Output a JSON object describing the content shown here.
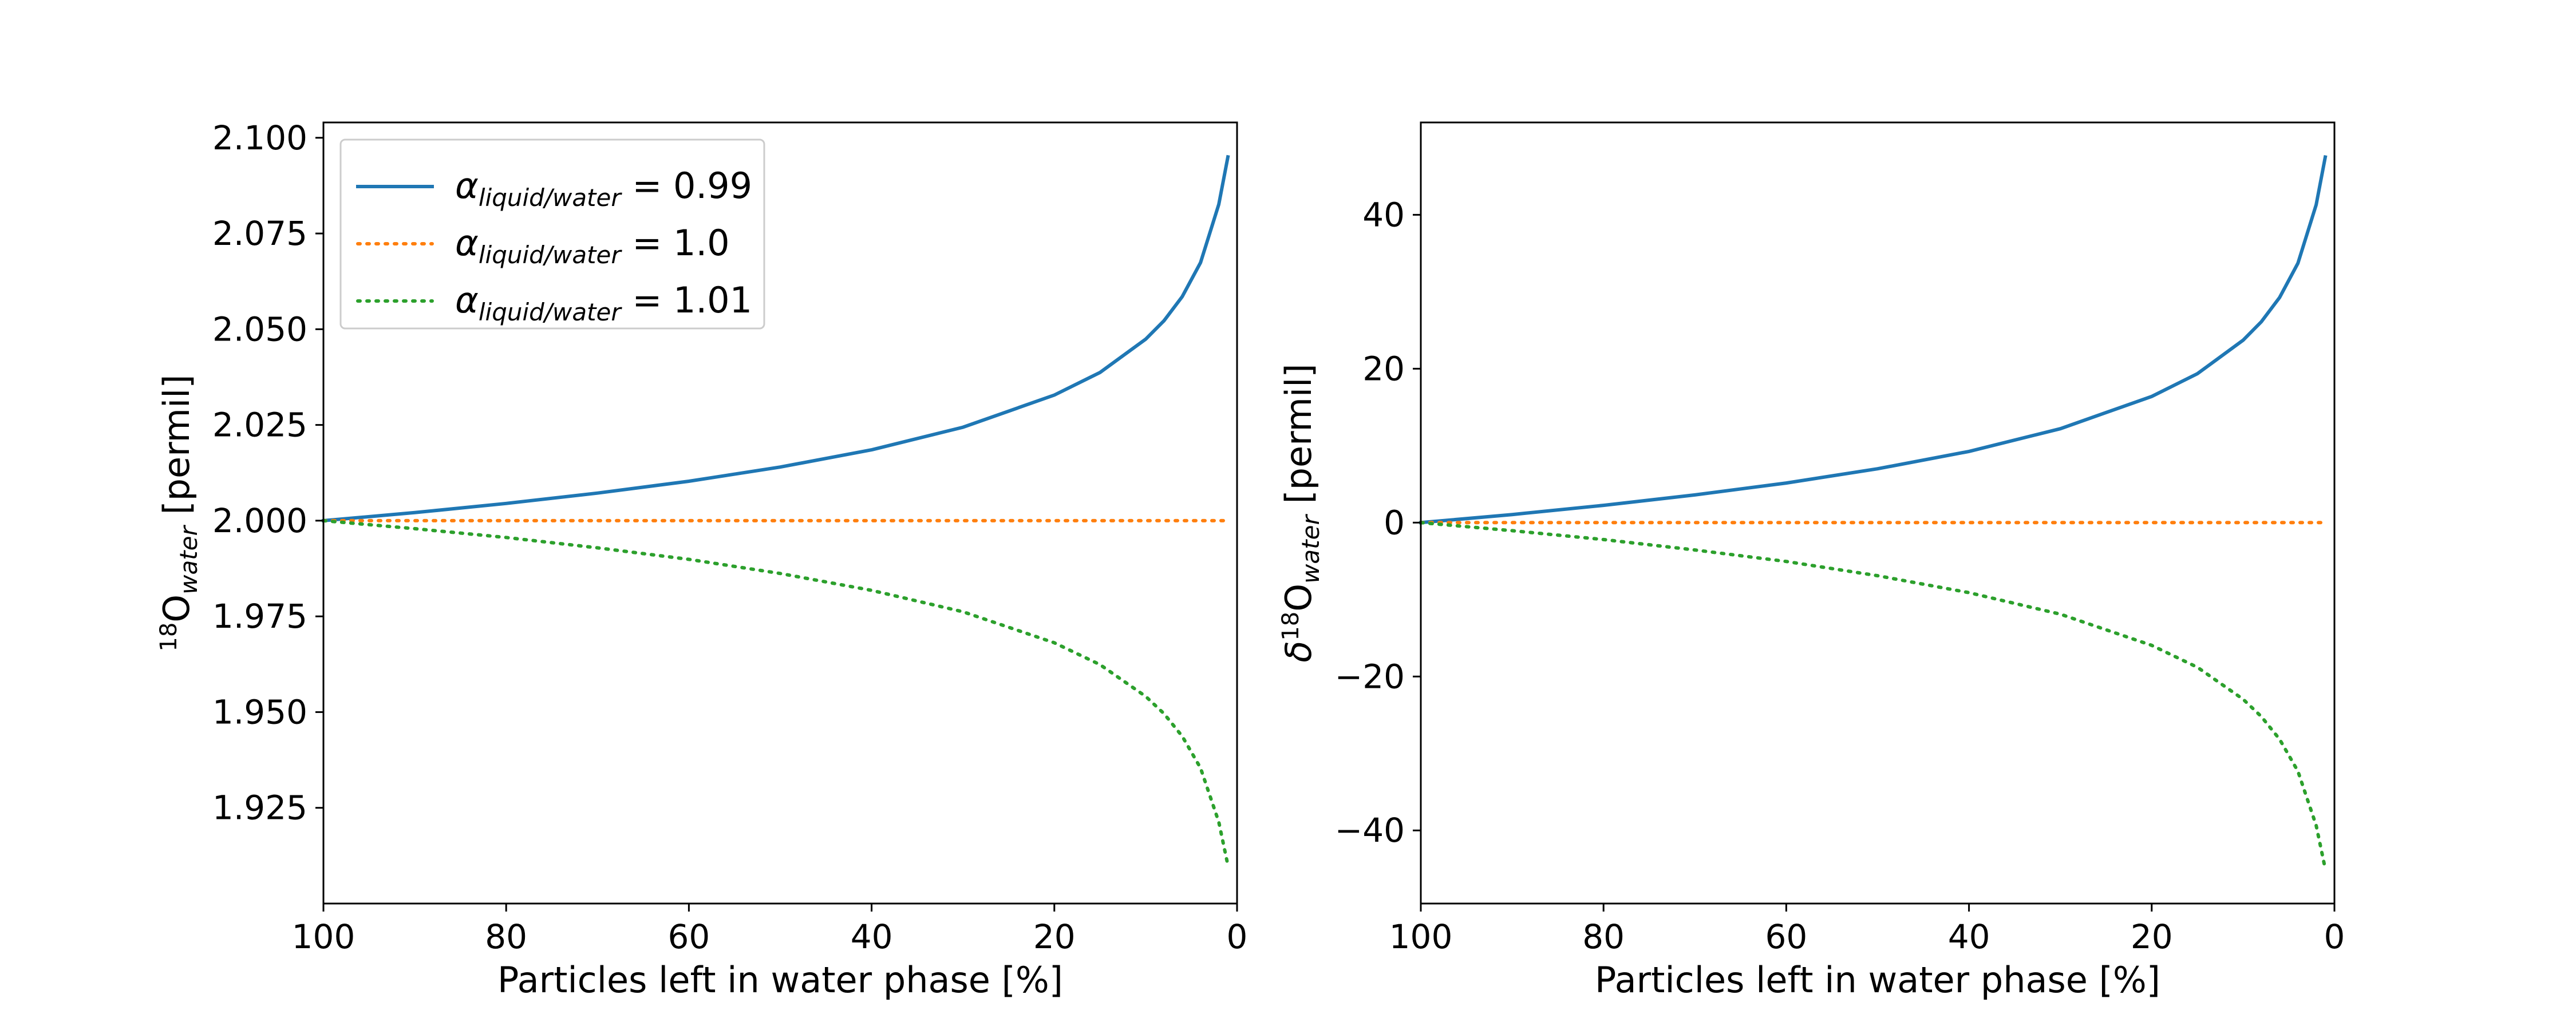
{
  "chart_data": [
    {
      "type": "line",
      "xlabel": "Particles left in water phase [%]",
      "ylabel": {
        "sup": "18",
        "main": "O",
        "sub": "water",
        "tail": " [permil]"
      },
      "xlim": [
        100,
        0
      ],
      "ylim": [
        1.9,
        2.104
      ],
      "xticks": [
        100,
        80,
        60,
        40,
        20,
        0
      ],
      "yticks": [
        2.1,
        2.075,
        2.05,
        2.025,
        2.0,
        1.975,
        1.95,
        1.925
      ],
      "ytick_labels": [
        "2.100",
        "2.075",
        "2.050",
        "2.025",
        "2.000",
        "1.975",
        "1.950",
        "1.925"
      ],
      "legend": "upper-left",
      "series": [
        {
          "name": "α_liquid/water = 0.99",
          "legend_symbol": "α",
          "legend_sub": "liquid/water",
          "legend_value": " = 0.99",
          "color": "#1f77b4",
          "style": "solid",
          "x": [
            100,
            90,
            80,
            70,
            60,
            50,
            40,
            30,
            20,
            15,
            10,
            8,
            6,
            4,
            2,
            1
          ],
          "y": [
            2.0,
            2.0021,
            2.0045,
            2.0072,
            2.0103,
            2.014,
            2.0185,
            2.0244,
            2.0328,
            2.0387,
            2.0474,
            2.0522,
            2.0585,
            2.0674,
            2.0826,
            2.095
          ]
        },
        {
          "name": "α_liquid/water = 1.0",
          "legend_symbol": "α",
          "legend_sub": "liquid/water",
          "legend_value": " = 1.0",
          "color": "#ff7f0e",
          "style": "dotted",
          "x": [
            100,
            1
          ],
          "y": [
            2.0,
            2.0
          ]
        },
        {
          "name": "α_liquid/water = 1.01",
          "legend_symbol": "α",
          "legend_sub": "liquid/water",
          "legend_value": " = 1.01",
          "color": "#2ca02c",
          "style": "dotted",
          "x": [
            100,
            90,
            80,
            70,
            60,
            50,
            40,
            30,
            20,
            15,
            10,
            8,
            6,
            4,
            2,
            1
          ],
          "y": [
            2.0,
            1.9979,
            1.9956,
            1.9929,
            1.9899,
            1.9862,
            1.9818,
            1.9762,
            1.9681,
            1.9624,
            1.9541,
            1.9496,
            1.9437,
            1.9354,
            1.9213,
            1.91
          ]
        }
      ]
    },
    {
      "type": "line",
      "xlabel": "Particles left in water phase [%]",
      "ylabel": {
        "pre": "δ",
        "sup": "18",
        "main": "O",
        "sub": "water",
        "tail": " [permil]"
      },
      "xlim": [
        100,
        0
      ],
      "ylim": [
        -49.5,
        52
      ],
      "xticks": [
        100,
        80,
        60,
        40,
        20,
        0
      ],
      "yticks": [
        40,
        20,
        0,
        -20,
        -40
      ],
      "ytick_labels": [
        "40",
        "20",
        "0",
        "−20",
        "−40"
      ],
      "series": [
        {
          "color": "#1f77b4",
          "style": "solid",
          "x": [
            100,
            90,
            80,
            70,
            60,
            50,
            40,
            30,
            20,
            15,
            10,
            8,
            6,
            4,
            2,
            1
          ],
          "y": [
            0,
            1.05,
            2.25,
            3.6,
            5.15,
            7.0,
            9.25,
            12.2,
            16.4,
            19.35,
            23.7,
            26.1,
            29.25,
            33.7,
            41.3,
            47.5
          ]
        },
        {
          "color": "#ff7f0e",
          "style": "dotted",
          "x": [
            100,
            1
          ],
          "y": [
            0,
            0
          ]
        },
        {
          "color": "#2ca02c",
          "style": "dotted",
          "x": [
            100,
            90,
            80,
            70,
            60,
            50,
            40,
            30,
            20,
            15,
            10,
            8,
            6,
            4,
            2,
            1
          ],
          "y": [
            0,
            -1.05,
            -2.2,
            -3.55,
            -5.05,
            -6.9,
            -9.1,
            -11.9,
            -15.95,
            -18.8,
            -22.95,
            -25.2,
            -28.15,
            -32.3,
            -39.35,
            -45.0
          ]
        }
      ]
    }
  ]
}
